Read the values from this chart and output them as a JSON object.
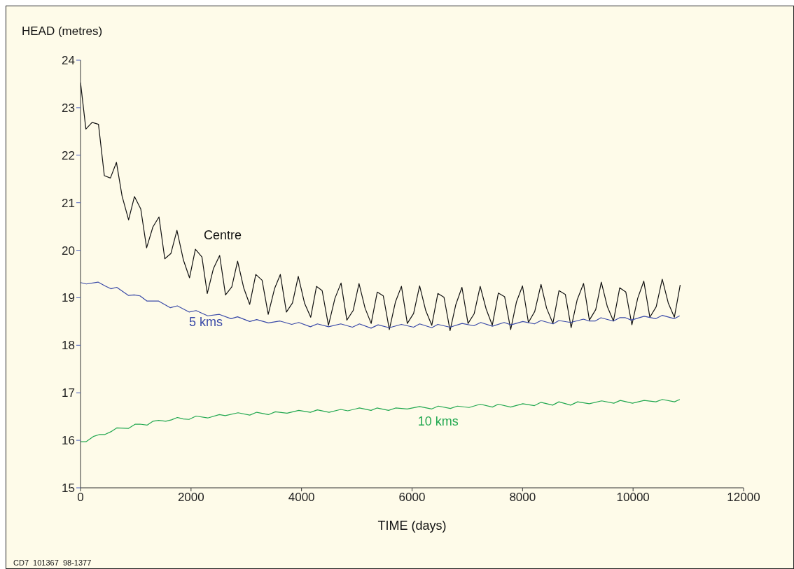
{
  "chart_data": {
    "type": "line",
    "xlabel": "TIME (days)",
    "ylabel": "HEAD (metres)",
    "xlim": [
      0,
      12000
    ],
    "xticks": [
      0,
      2000,
      4000,
      6000,
      8000,
      10000,
      12000
    ],
    "ylim": [
      15,
      24
    ],
    "yticks": [
      15,
      16,
      17,
      18,
      19,
      20,
      21,
      22,
      23,
      24
    ],
    "marker": "none",
    "line_style": "solid",
    "annotations": [
      "CD7  101367  98-1377"
    ],
    "series": [
      {
        "name": "Centre",
        "color": "#111111",
        "x": [
          0,
          97,
          210,
          325,
          431,
          541,
          650,
          752,
          870,
          976,
          1090,
          1196,
          1310,
          1420,
          1525,
          1635,
          1745,
          1863,
          1973,
          2079,
          2197,
          2294,
          2404,
          2518,
          2624,
          2738,
          2843,
          2953,
          3062,
          3172,
          3286,
          3397,
          3511,
          3616,
          3726,
          3836,
          3941,
          4056,
          4166,
          4271,
          4373,
          4487,
          4605,
          4715,
          4820,
          4934,
          5040,
          5150,
          5260,
          5370,
          5479,
          5589,
          5699,
          5808,
          5914,
          6028,
          6137,
          6248,
          6357,
          6467,
          6578,
          6688,
          6793,
          6903,
          7013,
          7123,
          7233,
          7342,
          7452,
          7562,
          7676,
          7785,
          7889,
          7999,
          8106,
          8220,
          8334,
          8435,
          8549,
          8659,
          8774,
          8879,
          8989,
          9104,
          9209,
          9324,
          9425,
          9535,
          9645,
          9759,
          9869,
          9979,
          10084,
          10194,
          10304,
          10418,
          10528,
          10637,
          10747,
          10853
        ],
        "values": [
          23.53,
          22.55,
          22.69,
          22.65,
          21.57,
          21.52,
          21.85,
          21.14,
          20.64,
          21.13,
          20.87,
          20.05,
          20.49,
          20.7,
          19.82,
          19.93,
          20.42,
          19.79,
          19.42,
          20.02,
          19.86,
          19.09,
          19.61,
          19.89,
          19.06,
          19.23,
          19.77,
          19.21,
          18.86,
          19.49,
          19.37,
          18.65,
          19.19,
          19.49,
          18.7,
          18.89,
          19.45,
          18.88,
          18.59,
          19.24,
          19.15,
          18.42,
          18.99,
          19.31,
          18.53,
          18.73,
          19.3,
          18.78,
          18.46,
          19.12,
          19.04,
          18.33,
          18.91,
          19.24,
          18.46,
          18.67,
          19.25,
          18.73,
          18.42,
          19.09,
          19.01,
          18.31,
          18.86,
          19.22,
          18.46,
          18.66,
          19.24,
          18.76,
          18.42,
          19.1,
          19.02,
          18.33,
          18.91,
          19.25,
          18.48,
          18.71,
          19.28,
          18.78,
          18.46,
          19.15,
          19.07,
          18.37,
          18.96,
          19.3,
          18.53,
          18.75,
          19.33,
          18.81,
          18.51,
          19.21,
          19.12,
          18.43,
          18.99,
          19.35,
          18.59,
          18.81,
          19.39,
          18.89,
          18.59,
          19.27
        ]
      },
      {
        "name": "5 kms",
        "color": "#3a4aa8",
        "x": [
          0,
          105,
          317,
          443,
          549,
          655,
          865,
          972,
          1077,
          1204,
          1415,
          1626,
          1752,
          1964,
          2091,
          2302,
          2513,
          2724,
          2842,
          3063,
          3189,
          3400,
          3611,
          3823,
          3950,
          4160,
          4287,
          4489,
          4710,
          4920,
          5047,
          5258,
          5385,
          5588,
          5807,
          6028,
          6137,
          6357,
          6466,
          6687,
          6906,
          7117,
          7244,
          7454,
          7666,
          7793,
          8004,
          8215,
          8334,
          8553,
          8658,
          8870,
          9102,
          9208,
          9313,
          9418,
          9643,
          9757,
          9862,
          9968,
          10200,
          10412,
          10530,
          10749,
          10843
        ],
        "values": [
          19.32,
          19.29,
          19.33,
          19.25,
          19.19,
          19.22,
          19.05,
          19.06,
          19.04,
          18.93,
          18.93,
          18.79,
          18.83,
          18.7,
          18.73,
          18.62,
          18.65,
          18.56,
          18.6,
          18.5,
          18.54,
          18.47,
          18.51,
          18.44,
          18.48,
          18.39,
          18.45,
          18.39,
          18.45,
          18.38,
          18.45,
          18.36,
          18.43,
          18.37,
          18.44,
          18.38,
          18.45,
          18.37,
          18.44,
          18.38,
          18.46,
          18.41,
          18.48,
          18.4,
          18.48,
          18.43,
          18.5,
          18.45,
          18.52,
          18.45,
          18.52,
          18.48,
          18.55,
          18.51,
          18.51,
          18.58,
          18.51,
          18.58,
          18.58,
          18.53,
          18.61,
          18.56,
          18.63,
          18.56,
          18.62
        ]
      },
      {
        "name": "10 kms",
        "color": "#22a850",
        "x": [
          0,
          98,
          232,
          338,
          435,
          549,
          655,
          865,
          992,
          1077,
          1204,
          1309,
          1415,
          1542,
          1647,
          1752,
          1859,
          1964,
          2091,
          2302,
          2513,
          2619,
          2851,
          3063,
          3189,
          3400,
          3526,
          3738,
          3950,
          4160,
          4287,
          4498,
          4710,
          4837,
          5047,
          5258,
          5364,
          5575,
          5702,
          5913,
          6137,
          6357,
          6475,
          6694,
          6821,
          7032,
          7235,
          7454,
          7561,
          7784,
          8004,
          8215,
          8334,
          8544,
          8658,
          8870,
          8996,
          9208,
          9431,
          9652,
          9769,
          9989,
          10200,
          10412,
          10530,
          10749,
          10846
        ],
        "values": [
          15.97,
          15.97,
          16.08,
          16.12,
          16.12,
          16.18,
          16.26,
          16.25,
          16.34,
          16.34,
          16.32,
          16.4,
          16.42,
          16.4,
          16.43,
          16.48,
          16.45,
          16.44,
          16.51,
          16.47,
          16.54,
          16.52,
          16.58,
          16.53,
          16.59,
          16.54,
          16.6,
          16.57,
          16.63,
          16.59,
          16.64,
          16.59,
          16.65,
          16.62,
          16.68,
          16.63,
          16.68,
          16.63,
          16.68,
          16.66,
          16.71,
          16.66,
          16.72,
          16.67,
          16.72,
          16.69,
          16.76,
          16.7,
          16.76,
          16.7,
          16.77,
          16.73,
          16.8,
          16.74,
          16.81,
          16.74,
          16.81,
          16.77,
          16.83,
          16.78,
          16.84,
          16.78,
          16.84,
          16.81,
          16.86,
          16.81,
          16.86
        ]
      }
    ]
  }
}
